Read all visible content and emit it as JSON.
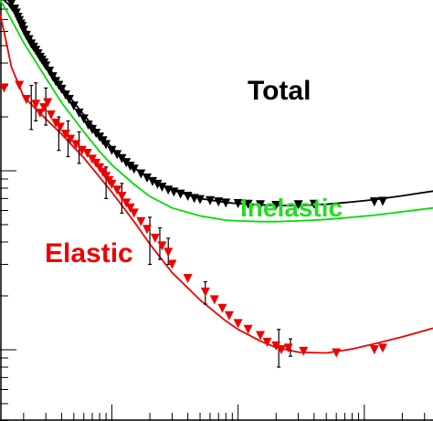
{
  "chart_data": {
    "type": "scatter",
    "title": "",
    "xlabel": "",
    "ylabel": "",
    "x_scale": "log",
    "y_scale": "log",
    "xlim": [
      1.3,
      3500
    ],
    "ylim": [
      4,
      900
    ],
    "annotations": {
      "total": "Total",
      "inelastic": "Inelastic",
      "elastic": "Elastic"
    },
    "colors": {
      "total": "#000000",
      "inelastic": "#00dd00",
      "elastic": "#ee0000",
      "axis": "#000000"
    },
    "series": [
      {
        "name": "Total",
        "kind": "points",
        "color": "#000000",
        "points": [
          [
            1.6,
            860
          ],
          [
            1.7,
            800
          ],
          [
            1.75,
            760
          ],
          [
            1.8,
            720
          ],
          [
            1.85,
            690
          ],
          [
            1.9,
            660
          ],
          [
            1.95,
            640
          ],
          [
            2.0,
            610
          ],
          [
            2.1,
            570
          ],
          [
            2.2,
            540
          ],
          [
            2.3,
            510
          ],
          [
            2.4,
            490
          ],
          [
            2.5,
            470
          ],
          [
            2.6,
            450
          ],
          [
            2.7,
            430
          ],
          [
            2.8,
            415
          ],
          [
            2.9,
            400
          ],
          [
            3.0,
            385
          ],
          [
            3.2,
            360
          ],
          [
            3.4,
            335
          ],
          [
            3.6,
            315
          ],
          [
            3.8,
            300
          ],
          [
            4.0,
            285
          ],
          [
            4.3,
            265
          ],
          [
            4.6,
            250
          ],
          [
            5.0,
            230
          ],
          [
            5.5,
            210
          ],
          [
            6.0,
            195
          ],
          [
            6.5,
            180
          ],
          [
            7.0,
            170
          ],
          [
            7.5,
            162
          ],
          [
            8.0,
            154
          ],
          [
            8.5,
            147
          ],
          [
            9.0,
            140
          ],
          [
            10,
            130
          ],
          [
            11,
            123
          ],
          [
            12,
            117
          ],
          [
            13,
            111
          ],
          [
            14,
            106
          ],
          [
            15,
            102
          ],
          [
            17,
            96
          ],
          [
            19,
            91
          ],
          [
            21,
            87
          ],
          [
            23,
            84
          ],
          [
            25,
            81
          ],
          [
            28,
            78
          ],
          [
            31,
            76
          ],
          [
            35,
            74
          ],
          [
            40,
            72
          ],
          [
            45,
            70
          ],
          [
            50,
            69
          ],
          [
            60,
            68
          ],
          [
            70,
            67
          ],
          [
            80,
            66
          ],
          [
            100,
            65.5
          ],
          [
            120,
            65
          ],
          [
            150,
            64.5
          ],
          [
            200,
            64
          ],
          [
            300,
            64.5
          ],
          [
            400,
            65
          ],
          [
            1200,
            67
          ],
          [
            1400,
            67.5
          ]
        ]
      },
      {
        "name": "Total",
        "kind": "line",
        "color": "#000000",
        "points": [
          [
            1.3,
            940
          ],
          [
            1.5,
            860
          ],
          [
            2,
            640
          ],
          [
            3,
            400
          ],
          [
            4,
            295
          ],
          [
            6,
            205
          ],
          [
            8,
            160
          ],
          [
            10,
            135
          ],
          [
            15,
            104
          ],
          [
            20,
            90
          ],
          [
            30,
            78
          ],
          [
            50,
            70
          ],
          [
            80,
            66.5
          ],
          [
            100,
            65.5
          ],
          [
            150,
            64.5
          ],
          [
            200,
            64
          ],
          [
            300,
            64
          ],
          [
            500,
            65
          ],
          [
            800,
            67
          ],
          [
            1200,
            69
          ],
          [
            2000,
            72.5
          ],
          [
            3500,
            77
          ]
        ]
      },
      {
        "name": "Inelastic",
        "kind": "line",
        "color": "#00dd00",
        "points": [
          [
            1.3,
            900
          ],
          [
            1.5,
            760
          ],
          [
            2,
            520
          ],
          [
            3,
            330
          ],
          [
            4,
            240
          ],
          [
            6,
            165
          ],
          [
            8,
            128
          ],
          [
            10,
            108
          ],
          [
            15,
            84
          ],
          [
            20,
            72
          ],
          [
            30,
            62
          ],
          [
            50,
            56
          ],
          [
            80,
            53
          ],
          [
            100,
            52.5
          ],
          [
            150,
            52
          ],
          [
            200,
            52
          ],
          [
            300,
            52.5
          ],
          [
            500,
            53.5
          ],
          [
            800,
            55
          ],
          [
            1200,
            56.5
          ],
          [
            2000,
            59
          ],
          [
            3500,
            62
          ]
        ]
      },
      {
        "name": "Elastic",
        "kind": "points",
        "color": "#ee0000",
        "points": [
          [
            1.4,
            290
          ],
          [
            1.85,
            300
          ],
          [
            2.1,
            250
          ],
          [
            2.5,
            235
          ],
          [
            2.7,
            210
          ],
          [
            2.9,
            225
          ],
          [
            3.1,
            240
          ],
          [
            3.3,
            205
          ],
          [
            3.6,
            185
          ],
          [
            3.9,
            175
          ],
          [
            4.3,
            160
          ],
          [
            4.7,
            150
          ],
          [
            5.2,
            140
          ],
          [
            5.8,
            130
          ],
          [
            6.4,
            125
          ],
          [
            7.0,
            116
          ],
          [
            7.5,
            110
          ],
          [
            8.0,
            104
          ],
          [
            8.5,
            98
          ],
          [
            9.0,
            93
          ],
          [
            9.5,
            88
          ],
          [
            10,
            84
          ],
          [
            11,
            78
          ],
          [
            12,
            72
          ],
          [
            13,
            66
          ],
          [
            14,
            62
          ],
          [
            15,
            58
          ],
          [
            17,
            52
          ],
          [
            19,
            47
          ],
          [
            22,
            42
          ],
          [
            25,
            38
          ],
          [
            28,
            35
          ],
          [
            30,
            30
          ],
          [
            40,
            25
          ],
          [
            55,
            21
          ],
          [
            65,
            19
          ],
          [
            75,
            17
          ],
          [
            85,
            15.5
          ],
          [
            100,
            14
          ],
          [
            120,
            13
          ],
          [
            150,
            12
          ],
          [
            170,
            11
          ],
          [
            200,
            10.5
          ],
          [
            220,
            10
          ],
          [
            250,
            10.2
          ],
          [
            330,
            9.8
          ],
          [
            600,
            9.6
          ],
          [
            1200,
            10
          ],
          [
            1400,
            10.2
          ]
        ]
      },
      {
        "name": "Elastic",
        "kind": "line",
        "color": "#ee0000",
        "points": [
          [
            1.3,
            750
          ],
          [
            1.4,
            600
          ],
          [
            1.6,
            380
          ],
          [
            2,
            260
          ],
          [
            3,
            195
          ],
          [
            4,
            160
          ],
          [
            6,
            118
          ],
          [
            8,
            92
          ],
          [
            10,
            76
          ],
          [
            15,
            52
          ],
          [
            20,
            39
          ],
          [
            30,
            27
          ],
          [
            50,
            19
          ],
          [
            80,
            14.5
          ],
          [
            100,
            13
          ],
          [
            150,
            11.2
          ],
          [
            200,
            10.3
          ],
          [
            300,
            9.7
          ],
          [
            500,
            9.6
          ],
          [
            800,
            10.1
          ],
          [
            1200,
            10.8
          ],
          [
            2000,
            11.8
          ],
          [
            3500,
            13.2
          ]
        ]
      }
    ],
    "error_bars": [
      {
        "x": 2.3,
        "y_low": 170,
        "y_high": 300
      },
      {
        "x": 2.5,
        "y_low": 190,
        "y_high": 310
      },
      {
        "x": 3.0,
        "y_low": 180,
        "y_high": 290
      },
      {
        "x": 3.8,
        "y_low": 130,
        "y_high": 200
      },
      {
        "x": 4.5,
        "y_low": 120,
        "y_high": 190
      },
      {
        "x": 5.5,
        "y_low": 110,
        "y_high": 165
      },
      {
        "x": 9.0,
        "y_low": 70,
        "y_high": 105
      },
      {
        "x": 12,
        "y_low": 58,
        "y_high": 85
      },
      {
        "x": 20,
        "y_low": 30,
        "y_high": 55
      },
      {
        "x": 24,
        "y_low": 32,
        "y_high": 48
      },
      {
        "x": 28,
        "y_low": 30,
        "y_high": 42
      },
      {
        "x": 55,
        "y_low": 18,
        "y_high": 24
      },
      {
        "x": 210,
        "y_low": 8,
        "y_high": 13
      },
      {
        "x": 260,
        "y_low": 9.2,
        "y_high": 11.5
      }
    ]
  }
}
